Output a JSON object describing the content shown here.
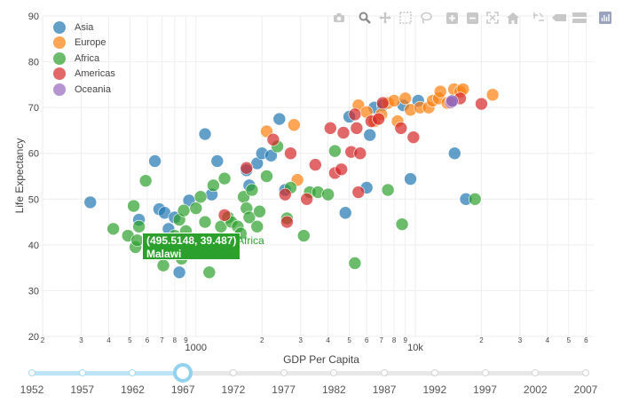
{
  "chart_data": {
    "type": "scatter",
    "title": "",
    "xlabel": "GDP Per Capita",
    "ylabel": "Life Expectancy",
    "x_scale": "log",
    "xlim": [
      200,
      65000
    ],
    "ylim": [
      20,
      90
    ],
    "y_ticks": [
      20,
      30,
      40,
      50,
      60,
      70,
      80,
      90
    ],
    "x_ticks": [
      {
        "value": 200,
        "label": "2"
      },
      {
        "value": 300,
        "label": "3"
      },
      {
        "value": 400,
        "label": "4"
      },
      {
        "value": 500,
        "label": "5"
      },
      {
        "value": 600,
        "label": "6"
      },
      {
        "value": 700,
        "label": "7"
      },
      {
        "value": 800,
        "label": "8"
      },
      {
        "value": 900,
        "label": "9"
      },
      {
        "value": 1000,
        "label": "1000"
      },
      {
        "value": 2000,
        "label": "2"
      },
      {
        "value": 3000,
        "label": "3"
      },
      {
        "value": 4000,
        "label": "4"
      },
      {
        "value": 5000,
        "label": "5"
      },
      {
        "value": 6000,
        "label": "6"
      },
      {
        "value": 7000,
        "label": "7"
      },
      {
        "value": 8000,
        "label": "8"
      },
      {
        "value": 9000,
        "label": "9"
      },
      {
        "value": 10000,
        "label": "10k"
      },
      {
        "value": 20000,
        "label": "2"
      },
      {
        "value": 30000,
        "label": "3"
      },
      {
        "value": 40000,
        "label": "4"
      },
      {
        "value": 50000,
        "label": "5"
      },
      {
        "value": 60000,
        "label": "6"
      }
    ],
    "year": "1967",
    "series": [
      {
        "name": "Asia",
        "color": "#1f77b4",
        "points": [
          [
            330,
            49.3
          ],
          [
            550,
            45.5
          ],
          [
            650,
            58.3
          ],
          [
            680,
            47.8
          ],
          [
            720,
            47
          ],
          [
            750,
            43.5
          ],
          [
            800,
            46
          ],
          [
            840,
            34
          ],
          [
            930,
            49.7
          ],
          [
            1100,
            64.2
          ],
          [
            1180,
            51
          ],
          [
            1250,
            58.3
          ],
          [
            1700,
            56.3
          ],
          [
            1750,
            53
          ],
          [
            1900,
            57.8
          ],
          [
            2000,
            60
          ],
          [
            2200,
            59.5
          ],
          [
            2400,
            67.5
          ],
          [
            2550,
            52
          ],
          [
            4800,
            47
          ],
          [
            5000,
            68
          ],
          [
            6000,
            52.5
          ],
          [
            6200,
            64
          ],
          [
            6500,
            70
          ],
          [
            7100,
            70.5
          ],
          [
            8800,
            70.5
          ],
          [
            9500,
            54.4
          ],
          [
            10300,
            71.5
          ],
          [
            15100,
            60
          ],
          [
            17000,
            50
          ],
          [
            14800,
            71.5
          ]
        ]
      },
      {
        "name": "Europe",
        "color": "#ff7f0e",
        "points": [
          [
            2100,
            64.8
          ],
          [
            2800,
            66.2
          ],
          [
            2900,
            54.2
          ],
          [
            5500,
            70.5
          ],
          [
            6000,
            69
          ],
          [
            6500,
            67
          ],
          [
            7000,
            68.5
          ],
          [
            7500,
            71
          ],
          [
            8000,
            71.5
          ],
          [
            8300,
            67
          ],
          [
            9000,
            72
          ],
          [
            9500,
            69.5
          ],
          [
            10500,
            70
          ],
          [
            11500,
            70
          ],
          [
            12000,
            71.5
          ],
          [
            12800,
            72
          ],
          [
            13000,
            73.5
          ],
          [
            14000,
            71
          ],
          [
            15000,
            74
          ],
          [
            16000,
            73.5
          ],
          [
            16500,
            74
          ],
          [
            22500,
            72.8
          ]
        ]
      },
      {
        "name": "Africa",
        "color": "#2ca02c",
        "points": [
          [
            420,
            43.5
          ],
          [
            490,
            42
          ],
          [
            520,
            48.5
          ],
          [
            530,
            39.5
          ],
          [
            540,
            41
          ],
          [
            550,
            44
          ],
          [
            590,
            54
          ],
          [
            620,
            40
          ],
          [
            710,
            35.5
          ],
          [
            730,
            39
          ],
          [
            800,
            42
          ],
          [
            840,
            45.5
          ],
          [
            860,
            37
          ],
          [
            880,
            47.5
          ],
          [
            900,
            43
          ],
          [
            950,
            41
          ],
          [
            1000,
            48
          ],
          [
            1050,
            50.5
          ],
          [
            1100,
            45
          ],
          [
            1150,
            34
          ],
          [
            1200,
            53
          ],
          [
            1300,
            44
          ],
          [
            1350,
            54.5
          ],
          [
            1400,
            46
          ],
          [
            1450,
            45
          ],
          [
            1550,
            44
          ],
          [
            1600,
            42.5
          ],
          [
            1650,
            50.5
          ],
          [
            1700,
            48
          ],
          [
            1750,
            46
          ],
          [
            1800,
            52
          ],
          [
            1900,
            44
          ],
          [
            1950,
            47.3
          ],
          [
            2100,
            55
          ],
          [
            2350,
            61.5
          ],
          [
            2600,
            45.8
          ],
          [
            2700,
            52.5
          ],
          [
            3100,
            42
          ],
          [
            3300,
            51.5
          ],
          [
            3600,
            51.5
          ],
          [
            4000,
            51
          ],
          [
            4300,
            60.5
          ],
          [
            5300,
            36
          ],
          [
            7500,
            52
          ],
          [
            8700,
            44.5
          ],
          [
            18700,
            50
          ]
        ]
      },
      {
        "name": "Americas",
        "color": "#d62728",
        "points": [
          [
            1350,
            46.5
          ],
          [
            1700,
            56.8
          ],
          [
            2250,
            63
          ],
          [
            2550,
            51
          ],
          [
            2600,
            45
          ],
          [
            2700,
            60
          ],
          [
            3200,
            50
          ],
          [
            3500,
            57.5
          ],
          [
            4100,
            65.5
          ],
          [
            4300,
            55.7
          ],
          [
            4600,
            56.5
          ],
          [
            4700,
            64.5
          ],
          [
            5100,
            60.3
          ],
          [
            5300,
            68.5
          ],
          [
            5400,
            65.5
          ],
          [
            5500,
            51.5
          ],
          [
            5600,
            60
          ],
          [
            6300,
            67
          ],
          [
            6800,
            67.5
          ],
          [
            7100,
            71
          ],
          [
            8600,
            65.5
          ],
          [
            9800,
            63.5
          ],
          [
            16000,
            72
          ],
          [
            20000,
            70.8
          ]
        ]
      },
      {
        "name": "Oceania",
        "color": "#9467bd",
        "points": [
          [
            14500,
            71.1
          ],
          [
            14700,
            71.4
          ]
        ]
      }
    ],
    "hover": {
      "coords": "(495.5148, 39.487)",
      "continent": "Africa",
      "country": "Malawi"
    }
  },
  "legend": [
    {
      "label": "Asia",
      "color": "#1f77b4"
    },
    {
      "label": "Europe",
      "color": "#ff7f0e"
    },
    {
      "label": "Africa",
      "color": "#2ca02c"
    },
    {
      "label": "Americas",
      "color": "#d62728"
    },
    {
      "label": "Oceania",
      "color": "#9467bd"
    }
  ],
  "modebar": [
    "camera-icon",
    "zoom-icon",
    "pan-icon",
    "box-select-icon",
    "lasso-select-icon",
    "zoom-in-icon",
    "zoom-out-icon",
    "autoscale-icon",
    "reset-axes-icon",
    "spike-lines-icon",
    "hover-closest-icon",
    "hover-compare-icon",
    "plotly-logo-icon"
  ],
  "slider": {
    "years": [
      "1952",
      "1957",
      "1962",
      "1967",
      "1972",
      "1977",
      "1982",
      "1987",
      "1992",
      "1997",
      "2002",
      "2007"
    ],
    "active_index": 3
  }
}
